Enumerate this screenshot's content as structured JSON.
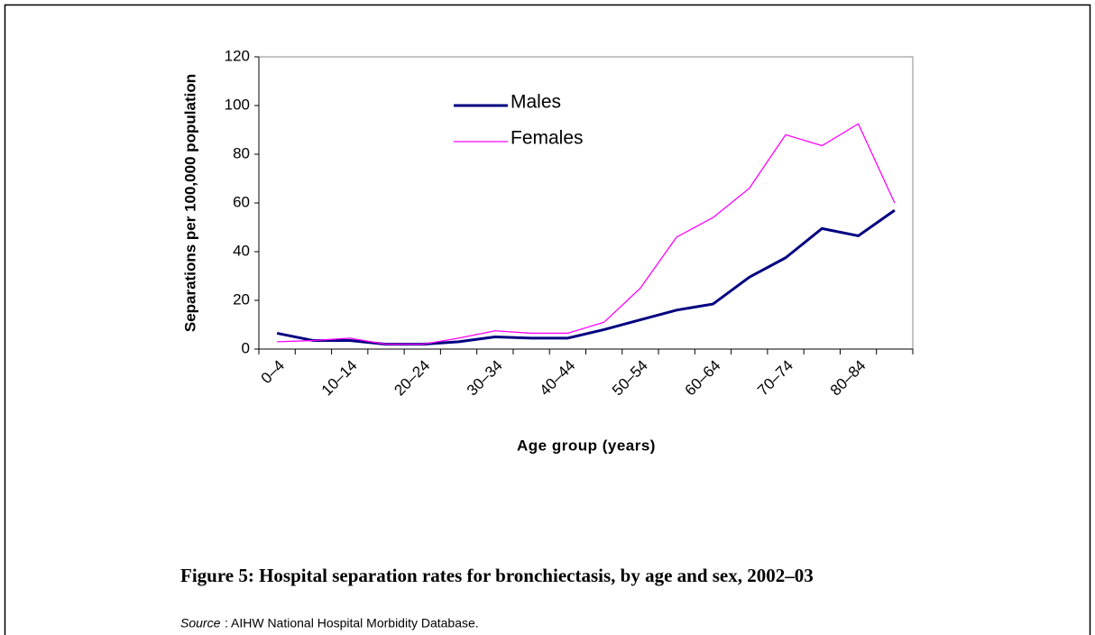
{
  "chart_data": {
    "type": "line",
    "title": "Figure 5: Hospital separation rates for bronchiectasis, by age and sex, 2002–03",
    "source_label": "Source",
    "source_text": ": AIHW National Hospital Morbidity Database.",
    "x_label": "Age group (years)",
    "y_label": "Separations per 100,000 population",
    "categories": [
      "0–4",
      null,
      "10–14",
      null,
      "20–24",
      null,
      "30–34",
      null,
      "40–44",
      null,
      "50–54",
      null,
      "60–64",
      null,
      "70–74",
      null,
      "80–84",
      null
    ],
    "series": [
      {
        "name": "Males",
        "color": "#000080",
        "width": 3,
        "values": [
          6.5,
          3.5,
          3.5,
          2,
          2,
          3,
          5,
          4.5,
          4.5,
          8,
          12,
          16,
          18.5,
          29.5,
          37.5,
          49.5,
          46.5,
          57
        ]
      },
      {
        "name": "Females",
        "color": "#ff00ff",
        "width": 1.3,
        "values": [
          3,
          3.5,
          4.5,
          2,
          2,
          4.5,
          7.5,
          6.5,
          6.5,
          11,
          25,
          46,
          54,
          66,
          88,
          83.5,
          92.5,
          60
        ]
      }
    ],
    "ylim": [
      0,
      120
    ],
    "yticks": [
      0,
      20,
      40,
      60,
      80,
      100,
      120
    ]
  }
}
